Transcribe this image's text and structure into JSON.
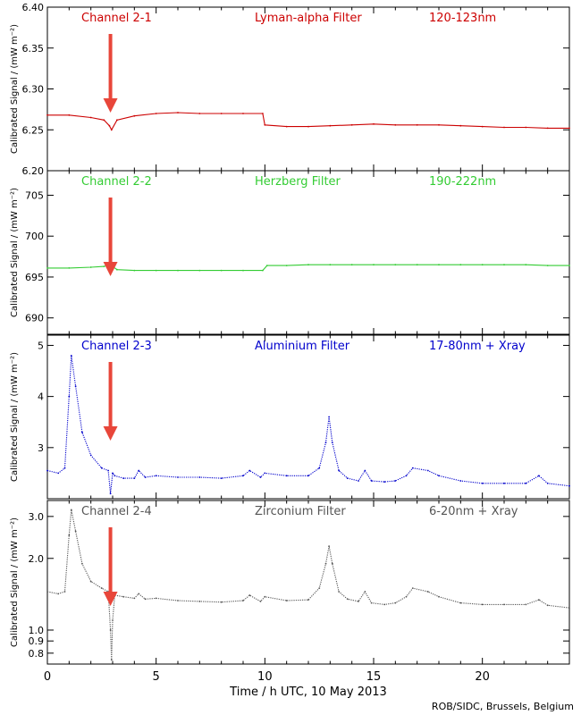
{
  "figure": {
    "xlabel": "Time / h UTC, 10 May 2013",
    "credit": "ROB/SIDC, Brussels, Belgium",
    "ylabel": "Calibrated Signal / (mW m⁻²)",
    "xlim": [
      0,
      24
    ],
    "xticks": [
      0,
      5,
      10,
      15,
      20
    ],
    "arrow_color": "#e8463a",
    "arrow_at_hour": 2.9
  },
  "chart_data": [
    {
      "type": "line",
      "channel": "Channel 2-1",
      "filter": "Lyman-alpha Filter",
      "band": "120-123nm",
      "color": "#cc0000",
      "scale": "linear",
      "ylim": [
        6.2,
        6.4
      ],
      "yticks": [
        6.2,
        6.25,
        6.3,
        6.35,
        6.4
      ],
      "yticklabels": [
        "6.20",
        "6.25",
        "6.30",
        "6.35",
        "6.40"
      ],
      "series": [
        {
          "x": [
            0,
            1,
            2,
            2.6,
            2.85,
            2.95,
            3.2,
            4,
            5,
            6,
            7,
            8,
            9,
            9.9,
            10.0,
            11,
            12,
            13,
            14,
            15,
            16,
            17,
            18,
            19,
            20,
            21,
            22,
            23,
            24
          ],
          "y": [
            6.268,
            6.268,
            6.265,
            6.262,
            6.255,
            6.25,
            6.262,
            6.267,
            6.27,
            6.271,
            6.27,
            6.27,
            6.27,
            6.27,
            6.256,
            6.254,
            6.254,
            6.255,
            6.256,
            6.257,
            6.256,
            6.256,
            6.256,
            6.255,
            6.254,
            6.253,
            6.253,
            6.252,
            6.252
          ]
        }
      ]
    },
    {
      "type": "line",
      "channel": "Channel 2-2",
      "filter": "Herzberg Filter",
      "band": "190-222nm",
      "color": "#33cc33",
      "scale": "linear",
      "ylim": [
        688,
        708
      ],
      "yticks": [
        690,
        695,
        700,
        705
      ],
      "yticklabels": [
        "690",
        "695",
        "700",
        "705"
      ],
      "series": [
        {
          "x": [
            0,
            1,
            2,
            2.6,
            2.9,
            3.2,
            4,
            5,
            6,
            7,
            8,
            9,
            9.9,
            10.1,
            11,
            12,
            13,
            14,
            15,
            16,
            17,
            18,
            19,
            20,
            21,
            22,
            23,
            24
          ],
          "y": [
            696.1,
            696.1,
            696.2,
            696.3,
            696.5,
            695.9,
            695.8,
            695.8,
            695.8,
            695.8,
            695.8,
            695.8,
            695.8,
            696.4,
            696.4,
            696.5,
            696.5,
            696.5,
            696.5,
            696.5,
            696.5,
            696.5,
            696.5,
            696.5,
            696.5,
            696.5,
            696.4,
            696.4
          ]
        }
      ]
    },
    {
      "type": "line",
      "channel": "Channel 2-3",
      "filter": "Aluminium Filter",
      "band": "17-80nm + Xray",
      "color": "#0000cc",
      "scale": "linear",
      "ylim": [
        2.0,
        5.2
      ],
      "yticks": [
        3,
        4,
        5
      ],
      "yticklabels": [
        "3",
        "4",
        "5"
      ],
      "series": [
        {
          "x": [
            0,
            0.5,
            0.8,
            1.0,
            1.1,
            1.3,
            1.6,
            2.0,
            2.5,
            2.8,
            2.9,
            3.0,
            3.1,
            3.5,
            4.0,
            4.2,
            4.5,
            5,
            6,
            7,
            8,
            9,
            9.3,
            9.8,
            10,
            11,
            12,
            12.5,
            12.8,
            12.95,
            13.1,
            13.4,
            13.8,
            14.3,
            14.6,
            14.9,
            15.5,
            16,
            16.5,
            16.8,
            17.5,
            18,
            19,
            20,
            21,
            22,
            22.6,
            23,
            24
          ],
          "y": [
            2.55,
            2.5,
            2.6,
            4.0,
            4.8,
            4.2,
            3.3,
            2.85,
            2.6,
            2.55,
            2.1,
            2.5,
            2.45,
            2.4,
            2.4,
            2.55,
            2.42,
            2.45,
            2.42,
            2.42,
            2.4,
            2.45,
            2.55,
            2.42,
            2.5,
            2.45,
            2.45,
            2.6,
            3.1,
            3.6,
            3.1,
            2.55,
            2.4,
            2.35,
            2.55,
            2.35,
            2.33,
            2.35,
            2.45,
            2.6,
            2.55,
            2.45,
            2.35,
            2.3,
            2.3,
            2.3,
            2.45,
            2.3,
            2.25
          ]
        }
      ]
    },
    {
      "type": "line",
      "channel": "Channel 2-4",
      "filter": "Zirconium Filter",
      "band": "6-20nm + Xray",
      "color": "#555555",
      "scale": "log",
      "ylim": [
        0.72,
        3.5
      ],
      "yticks": [
        0.8,
        0.9,
        1.0,
        2.0,
        3.0
      ],
      "yticklabels": [
        "0.8",
        "0.9",
        "1.0",
        "2.0",
        "3.0"
      ],
      "series": [
        {
          "x": [
            0,
            0.5,
            0.8,
            1.0,
            1.1,
            1.3,
            1.6,
            2.0,
            2.5,
            2.8,
            2.9,
            2.95,
            3.0,
            3.1,
            3.5,
            4.0,
            4.2,
            4.5,
            5,
            6,
            7,
            8,
            9,
            9.3,
            9.8,
            10,
            11,
            12,
            12.5,
            12.8,
            12.95,
            13.1,
            13.4,
            13.8,
            14.3,
            14.6,
            14.9,
            15.5,
            16,
            16.5,
            16.8,
            17.5,
            18,
            19,
            20,
            21,
            22,
            22.6,
            23,
            24
          ],
          "y": [
            1.45,
            1.42,
            1.45,
            2.5,
            3.2,
            2.6,
            1.9,
            1.6,
            1.5,
            1.45,
            1.0,
            0.75,
            1.1,
            1.4,
            1.38,
            1.36,
            1.42,
            1.35,
            1.36,
            1.33,
            1.32,
            1.31,
            1.33,
            1.4,
            1.32,
            1.38,
            1.33,
            1.34,
            1.5,
            1.9,
            2.25,
            1.9,
            1.45,
            1.35,
            1.32,
            1.45,
            1.3,
            1.28,
            1.3,
            1.38,
            1.5,
            1.45,
            1.38,
            1.3,
            1.28,
            1.28,
            1.28,
            1.34,
            1.27,
            1.24
          ]
        }
      ]
    }
  ]
}
